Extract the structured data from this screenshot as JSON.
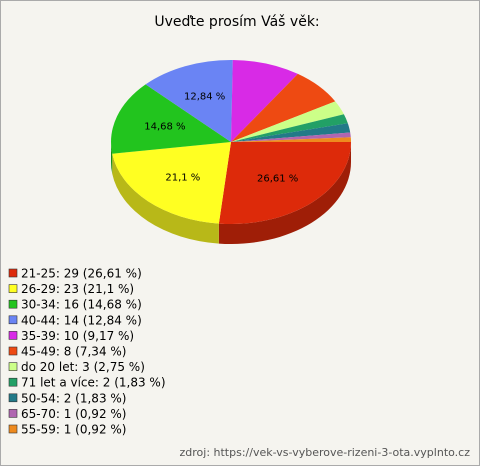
{
  "chart_data": {
    "type": "pie",
    "title": "Uveďte prosím Váš věk:",
    "categories": [
      "21-25: 29 (26,61 %)",
      "26-29: 23 (21,1 %)",
      "30-34: 16 (14,68 %)",
      "40-44: 14 (12,84 %)",
      "35-39: 10 (9,17 %)",
      "45-49: 8 (7,34 %)",
      "do 20 let: 3 (2,75 %)",
      "71 let a více: 2 (1,83 %)",
      "50-54: 2 (1,83 %)",
      "65-70: 1 (0,92 %)",
      "55-59: 1 (0,92 %)"
    ],
    "values": [
      26.61,
      21.1,
      14.68,
      12.84,
      9.17,
      7.34,
      2.75,
      1.83,
      1.83,
      0.92,
      0.92
    ],
    "value_labels": [
      "26,61 %",
      "21,1 %",
      "14,68 %",
      "12,84 %",
      null,
      null,
      null,
      null,
      null,
      null,
      null
    ],
    "colors": [
      "#dd2a0a",
      "#ffff22",
      "#22c41e",
      "#6a84f4",
      "#d82ae6",
      "#ee4a12",
      "#ccff88",
      "#22a066",
      "#227a88",
      "#b066b0",
      "#ee8a1e"
    ],
    "source": "zdroj: https://vek-vs-vyberove-rizeni-3-ota.vyplnto.cz"
  }
}
